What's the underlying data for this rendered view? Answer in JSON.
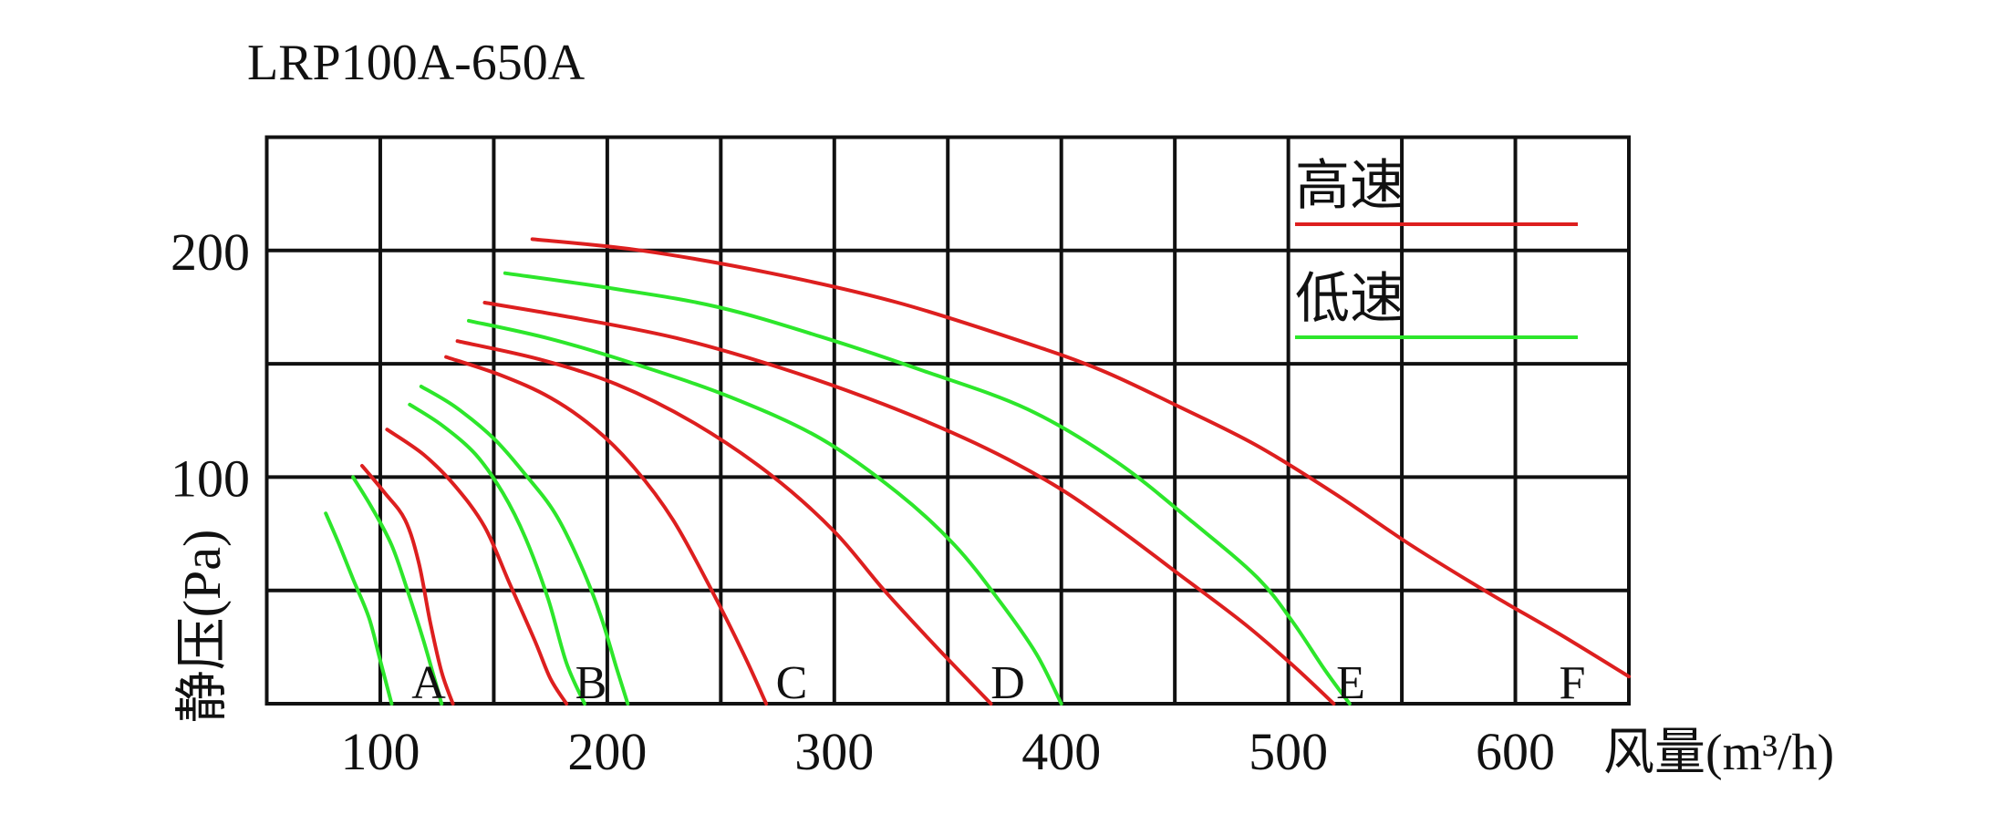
{
  "chart_data": {
    "type": "line",
    "title": "LRP100A-650A",
    "xlabel": "风量(m³/h)",
    "ylabel": "静压(Pa)",
    "xlim": [
      50,
      650
    ],
    "ylim": [
      0,
      250
    ],
    "xticks": [
      100,
      200,
      300,
      400,
      500,
      600
    ],
    "yticks": [
      100,
      200
    ],
    "grid": true,
    "grid_step": [
      50,
      50
    ],
    "legend_position": "top-right",
    "legend": [
      {
        "label": "高速",
        "color": "#dd1f1f"
      },
      {
        "label": "低速",
        "color": "#2de62b"
      }
    ],
    "curve_labels": [
      "A",
      "B",
      "C",
      "D",
      "E",
      "F"
    ],
    "series": [
      {
        "color": "#2de62b",
        "points": [
          [
            76,
            84
          ],
          [
            82,
            70
          ],
          [
            88,
            55
          ],
          [
            95,
            38
          ],
          [
            100,
            19
          ],
          [
            105,
            0
          ]
        ]
      },
      {
        "color": "#2de62b",
        "points": [
          [
            88,
            100
          ],
          [
            96,
            87
          ],
          [
            105,
            70
          ],
          [
            112,
            50
          ],
          [
            119,
            28
          ],
          [
            127,
            0
          ]
        ]
      },
      {
        "color": "#dd1f1f",
        "points": [
          [
            92,
            105
          ],
          [
            102,
            93
          ],
          [
            111,
            81
          ],
          [
            117,
            62
          ],
          [
            122,
            36
          ],
          [
            127,
            14
          ],
          [
            132,
            0
          ]
        ]
      },
      {
        "color": "#dd1f1f",
        "points": [
          [
            103,
            121
          ],
          [
            119,
            110
          ],
          [
            133,
            96
          ],
          [
            146,
            78
          ],
          [
            157,
            53
          ],
          [
            168,
            28
          ],
          [
            175,
            11
          ],
          [
            182,
            0
          ]
        ]
      },
      {
        "color": "#2de62b",
        "points": [
          [
            113,
            132
          ],
          [
            127,
            123
          ],
          [
            142,
            110
          ],
          [
            154,
            93
          ],
          [
            164,
            73
          ],
          [
            174,
            46
          ],
          [
            182,
            18
          ],
          [
            190,
            0
          ]
        ]
      },
      {
        "color": "#2de62b",
        "points": [
          [
            118,
            140
          ],
          [
            133,
            131
          ],
          [
            150,
            117
          ],
          [
            164,
            101
          ],
          [
            177,
            84
          ],
          [
            188,
            62
          ],
          [
            197,
            39
          ],
          [
            204,
            16
          ],
          [
            209,
            0
          ]
        ]
      },
      {
        "color": "#dd1f1f",
        "points": [
          [
            129,
            153
          ],
          [
            153,
            145
          ],
          [
            175,
            135
          ],
          [
            195,
            121
          ],
          [
            212,
            104
          ],
          [
            229,
            81
          ],
          [
            246,
            50
          ],
          [
            260,
            22
          ],
          [
            270,
            0
          ]
        ]
      },
      {
        "color": "#dd1f1f",
        "points": [
          [
            134,
            160
          ],
          [
            170,
            152
          ],
          [
            204,
            141
          ],
          [
            238,
            124
          ],
          [
            272,
            101
          ],
          [
            300,
            76
          ],
          [
            322,
            50
          ],
          [
            345,
            25
          ],
          [
            369,
            0
          ]
        ]
      },
      {
        "color": "#2de62b",
        "points": [
          [
            139,
            169
          ],
          [
            175,
            161
          ],
          [
            215,
            149
          ],
          [
            255,
            135
          ],
          [
            294,
            117
          ],
          [
            328,
            93
          ],
          [
            353,
            70
          ],
          [
            373,
            45
          ],
          [
            389,
            22
          ],
          [
            400,
            0
          ]
        ]
      },
      {
        "color": "#dd1f1f",
        "points": [
          [
            146,
            177
          ],
          [
            187,
            170
          ],
          [
            232,
            161
          ],
          [
            277,
            148
          ],
          [
            322,
            132
          ],
          [
            362,
            115
          ],
          [
            396,
            97
          ],
          [
            424,
            78
          ],
          [
            452,
            57
          ],
          [
            481,
            35
          ],
          [
            503,
            16
          ],
          [
            520,
            0
          ]
        ]
      },
      {
        "color": "#2de62b",
        "points": [
          [
            155,
            190
          ],
          [
            204,
            183
          ],
          [
            249,
            175
          ],
          [
            294,
            162
          ],
          [
            339,
            147
          ],
          [
            385,
            130
          ],
          [
            424,
            107
          ],
          [
            458,
            80
          ],
          [
            486,
            56
          ],
          [
            502,
            36
          ],
          [
            516,
            15
          ],
          [
            527,
            0
          ]
        ]
      },
      {
        "color": "#dd1f1f",
        "points": [
          [
            167,
            205
          ],
          [
            215,
            200
          ],
          [
            272,
            190
          ],
          [
            328,
            177
          ],
          [
            385,
            159
          ],
          [
            418,
            147
          ],
          [
            452,
            131
          ],
          [
            486,
            114
          ],
          [
            520,
            93
          ],
          [
            554,
            70
          ],
          [
            588,
            49
          ],
          [
            619,
            31
          ],
          [
            650,
            12
          ]
        ]
      }
    ]
  }
}
